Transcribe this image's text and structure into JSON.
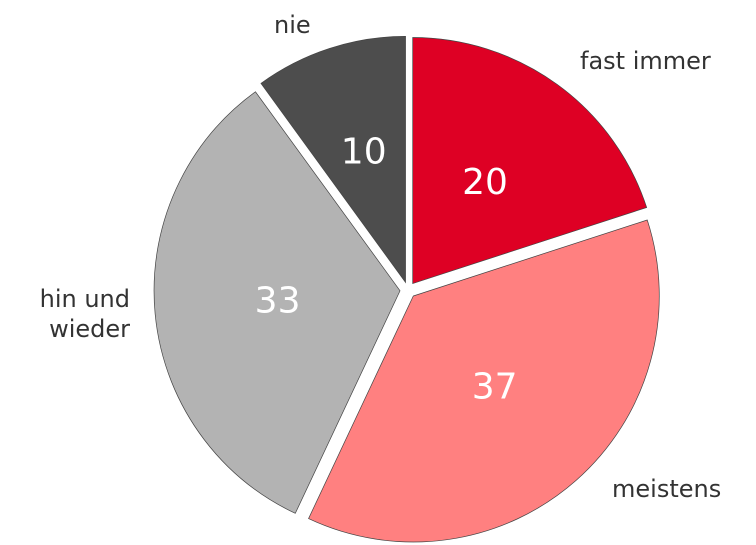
{
  "chart_data": {
    "type": "pie",
    "categories": [
      "fast immer",
      "meistens",
      "hin und\nwieder",
      "nie"
    ],
    "values": [
      20,
      37,
      33,
      10
    ],
    "colors": [
      "#de0024",
      "#ff8080",
      "#b3b3b3",
      "#4d4d4d"
    ]
  }
}
